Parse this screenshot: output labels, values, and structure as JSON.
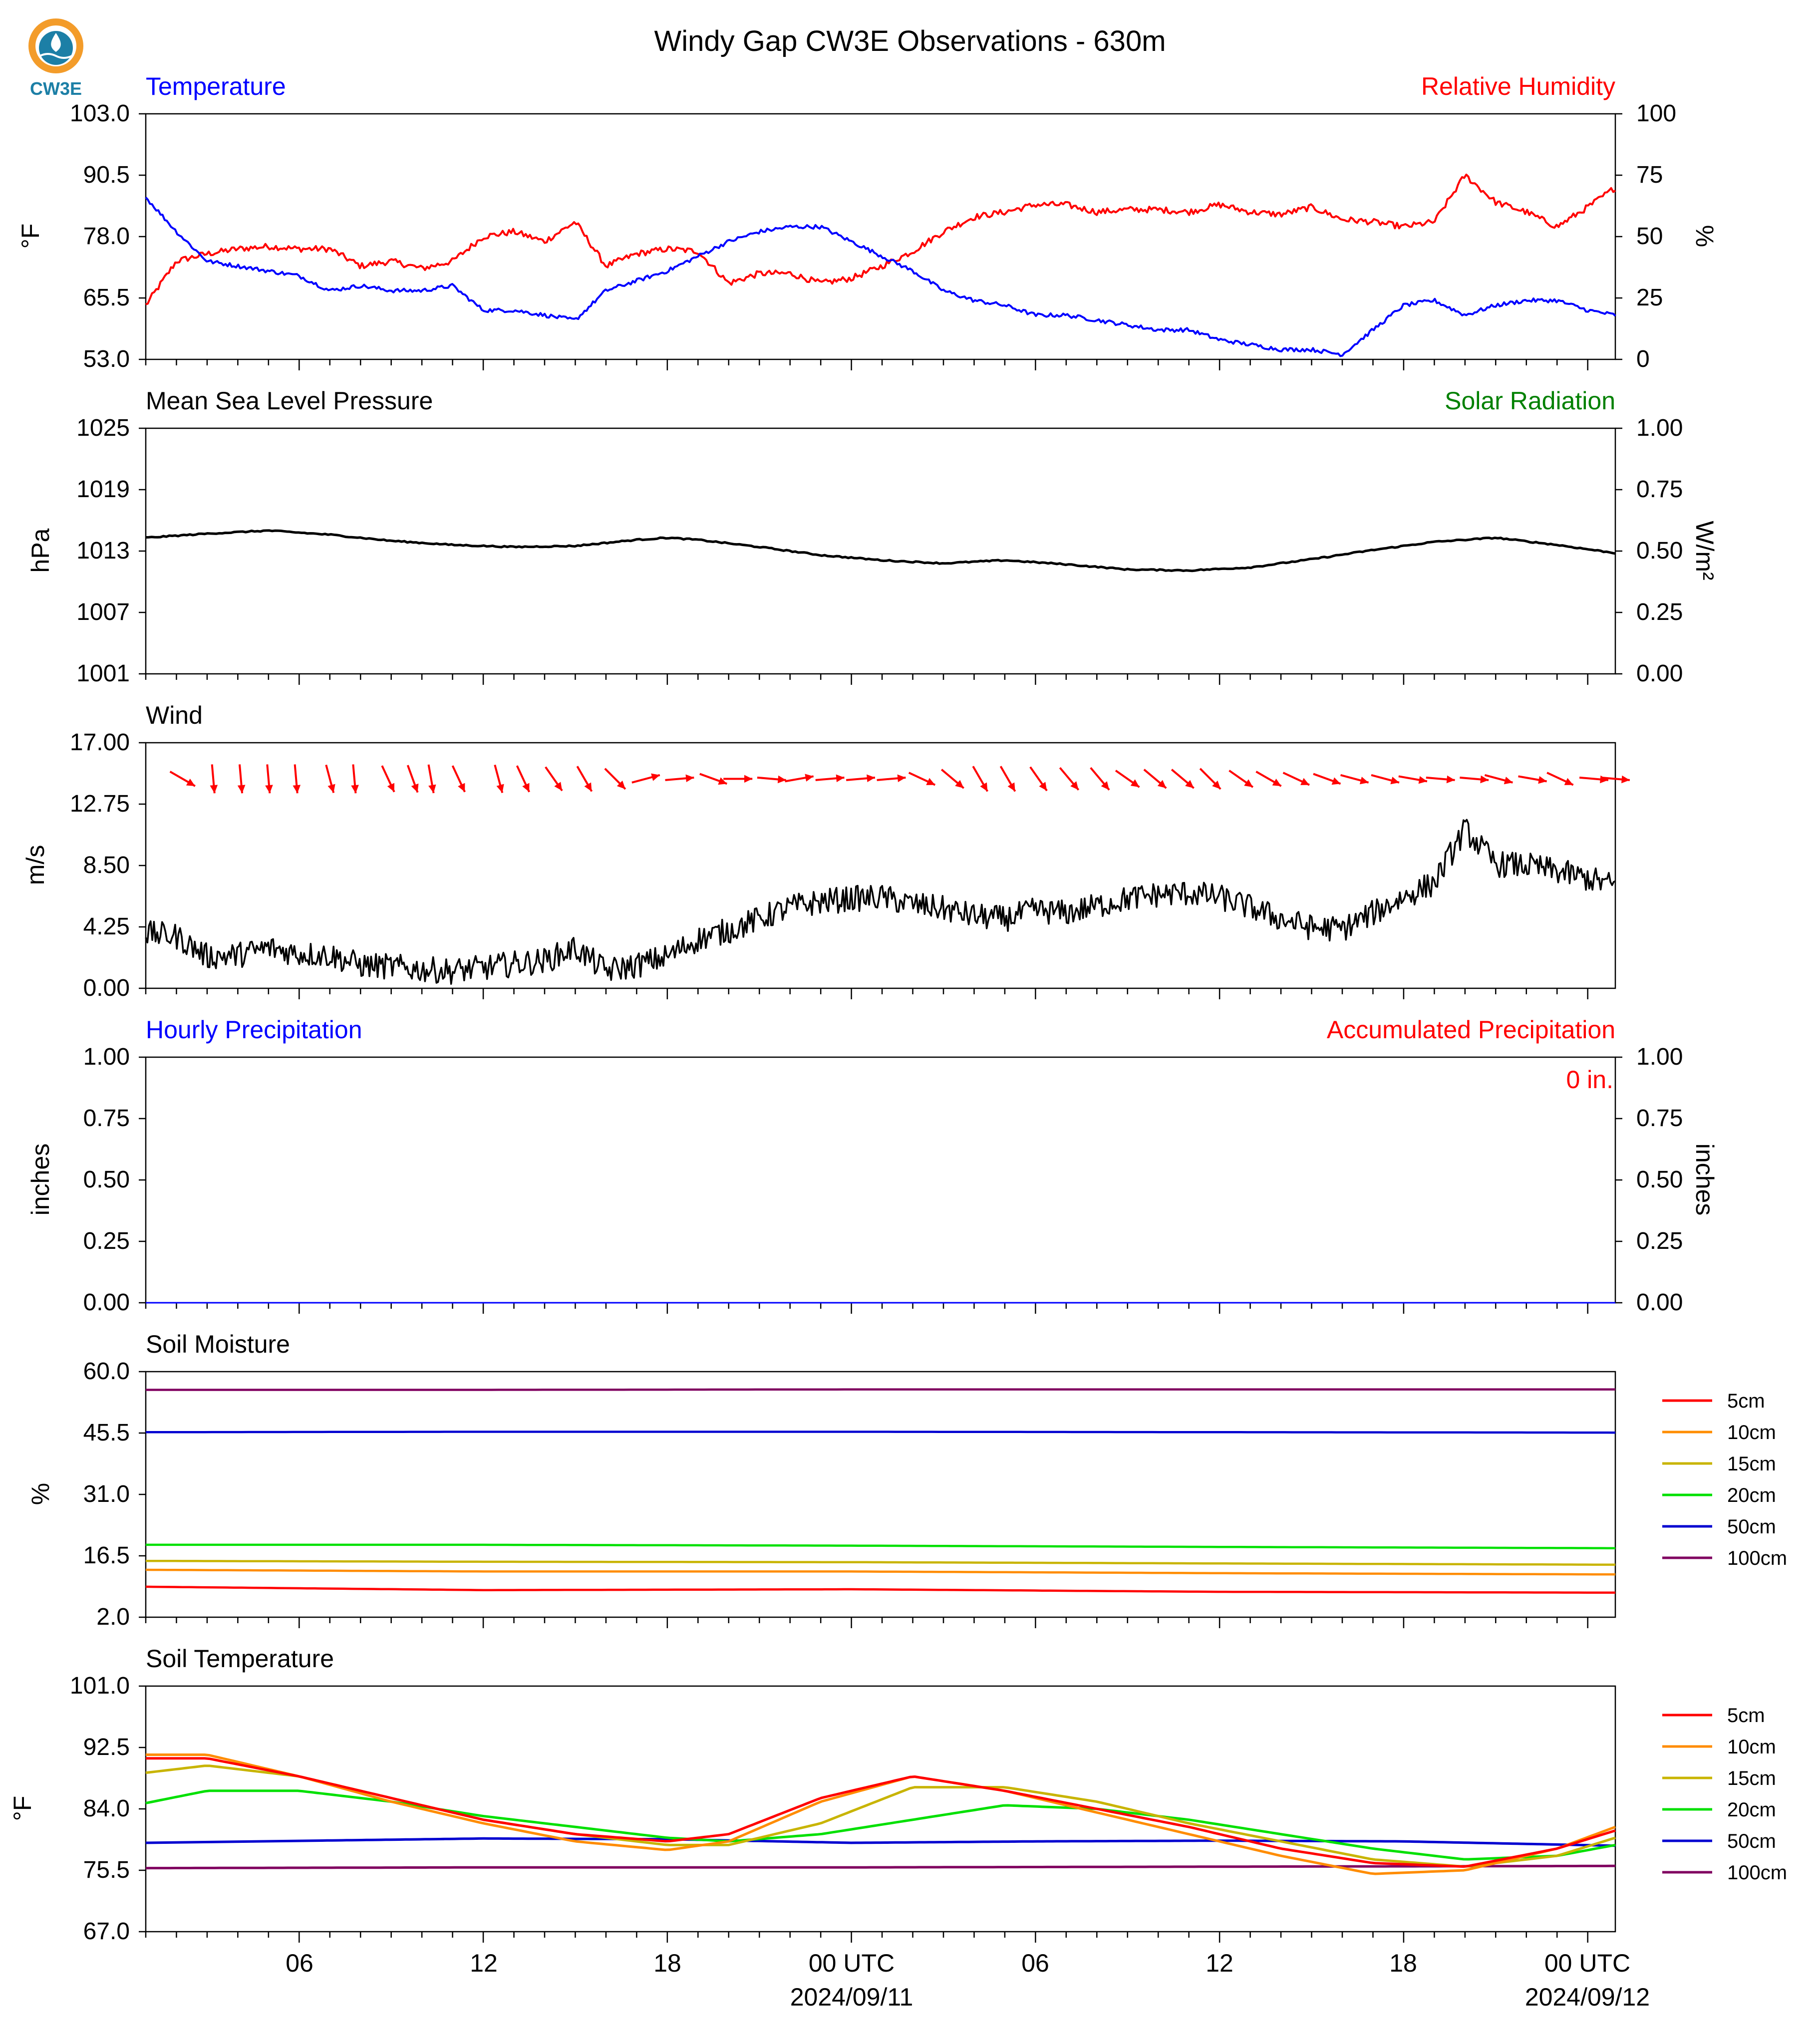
{
  "page_title": "Windy Gap CW3E Observations - 630m",
  "logo_text": "CW3E",
  "colors": {
    "temperature": "#0000ff",
    "humidity": "#ff0000",
    "pressure": "#000000",
    "solar": "#008000",
    "wind": "#000000",
    "wind_arrow": "#ff0000",
    "hourly_precip": "#0000ff",
    "accum_precip": "#ff0000",
    "soil_5cm": "#ff0000",
    "soil_10cm": "#ff8c00",
    "soil_15cm": "#c8b400",
    "soil_20cm": "#00e000",
    "soil_50cm": "#0000d0",
    "soil_100cm": "#800060"
  },
  "x_axis": {
    "tick_labels": [
      "06",
      "12",
      "18",
      "00 UTC",
      "06",
      "12",
      "18",
      "00 UTC"
    ],
    "tick_hours": [
      6,
      12,
      18,
      24,
      30,
      36,
      42,
      48
    ],
    "date_labels": [
      {
        "hour": 24,
        "text": "2024/09/11"
      },
      {
        "hour": 48,
        "text": "2024/09/12"
      }
    ],
    "range_hours": [
      1,
      48.9
    ]
  },
  "panels": {
    "temp_rh": {
      "left_title": "Temperature",
      "right_title": "Relative Humidity",
      "left_unit": "°F",
      "right_unit": "%",
      "left_ticks": [
        "103.0",
        "90.5",
        "78.0",
        "65.5",
        "53.0"
      ],
      "right_ticks": [
        "100",
        "75",
        "50",
        "25",
        "0"
      ]
    },
    "pressure": {
      "left_title": "Mean Sea Level Pressure",
      "right_title": "Solar Radiation",
      "left_unit": "hPa",
      "right_unit": "W/m²",
      "left_ticks": [
        "1025",
        "1019",
        "1013",
        "1007",
        "1001"
      ],
      "right_ticks": [
        "1.00",
        "0.75",
        "0.50",
        "0.25",
        "0.00"
      ]
    },
    "wind": {
      "left_title": "Wind",
      "left_unit": "m/s",
      "left_ticks": [
        "17.00",
        "12.75",
        "8.50",
        "4.25",
        "0.00"
      ]
    },
    "precip": {
      "left_title": "Hourly Precipitation",
      "right_title": "Accumulated Precipitation",
      "left_unit": "inches",
      "right_unit": "inches",
      "left_ticks": [
        "1.00",
        "0.75",
        "0.50",
        "0.25",
        "0.00"
      ],
      "right_ticks": [
        "1.00",
        "0.75",
        "0.50",
        "0.25",
        "0.00"
      ],
      "accum_label": "0 in."
    },
    "soil_moisture": {
      "left_title": "Soil Moisture",
      "left_unit": "%",
      "left_ticks": [
        "60.0",
        "45.5",
        "31.0",
        "16.5",
        "2.0"
      ],
      "legend": [
        "5cm",
        "10cm",
        "15cm",
        "20cm",
        "50cm",
        "100cm"
      ]
    },
    "soil_temp": {
      "left_title": "Soil Temperature",
      "left_unit": "°F",
      "left_ticks": [
        "101.0",
        "92.5",
        "84.0",
        "75.5",
        "67.0"
      ],
      "legend": [
        "5cm",
        "10cm",
        "15cm",
        "20cm",
        "50cm",
        "100cm"
      ]
    }
  },
  "chart_data": [
    {
      "type": "line",
      "title": "Temperature",
      "ylabel": "°F",
      "ylim": [
        53,
        103
      ],
      "series": [
        {
          "name": "Temperature",
          "x": [
            1,
            2,
            3,
            4,
            5,
            6,
            7,
            8,
            9,
            10,
            11,
            12,
            13,
            14,
            15,
            16,
            17,
            18,
            19,
            20,
            21,
            22,
            23,
            24,
            25,
            26,
            27,
            28,
            29,
            30,
            31,
            32,
            33,
            34,
            35,
            36,
            37,
            38,
            39,
            40,
            41,
            42,
            43,
            44,
            45,
            46,
            47,
            48,
            48.9
          ],
          "y": [
            86,
            79,
            73,
            72,
            71,
            70,
            67,
            68,
            67,
            67,
            68,
            63,
            63,
            62,
            61,
            67,
            69,
            71,
            74,
            77,
            79,
            80,
            80,
            77,
            74,
            71,
            67,
            65,
            64,
            62,
            62,
            61,
            60,
            59,
            59,
            57,
            56,
            55,
            55,
            54,
            59,
            64,
            65,
            62,
            64,
            65,
            65,
            63,
            62
          ]
        }
      ]
    },
    {
      "type": "line",
      "title": "Relative Humidity",
      "ylabel": "%",
      "ylim": [
        0,
        100
      ],
      "series": [
        {
          "name": "Relative Humidity",
          "x": [
            1,
            2,
            3,
            4,
            5,
            6,
            7,
            8,
            9,
            10,
            11,
            12,
            13,
            14,
            15,
            16,
            17,
            18,
            19,
            20,
            21,
            22,
            23,
            24,
            25,
            26,
            27,
            28,
            29,
            30,
            31,
            32,
            33,
            34,
            35,
            36,
            37,
            38,
            39,
            40,
            41,
            42,
            43,
            44,
            45,
            46,
            47,
            48,
            48.9
          ],
          "y": [
            22,
            40,
            43,
            45,
            46,
            45,
            45,
            38,
            40,
            37,
            40,
            50,
            52,
            48,
            56,
            38,
            43,
            45,
            44,
            31,
            35,
            35,
            31,
            33,
            38,
            44,
            52,
            58,
            60,
            63,
            63,
            60,
            61,
            61,
            60,
            63,
            60,
            59,
            62,
            57,
            56,
            54,
            56,
            75,
            64,
            60,
            54,
            62,
            70
          ]
        }
      ]
    },
    {
      "type": "line",
      "title": "Mean Sea Level Pressure",
      "ylabel": "hPa",
      "ylim": [
        1001,
        1025
      ],
      "series": [
        {
          "name": "Mean Sea Level Pressure",
          "x": [
            1,
            3,
            5,
            7,
            9,
            11,
            13,
            15,
            17,
            18,
            19,
            21,
            23,
            25,
            27,
            29,
            31,
            33,
            35,
            37,
            39,
            41,
            43,
            45,
            47,
            48.9
          ],
          "y": [
            1014.3,
            1014.7,
            1015,
            1014.6,
            1014,
            1013.6,
            1013.4,
            1013.5,
            1014.1,
            1014.3,
            1014.1,
            1013.4,
            1012.6,
            1012.1,
            1011.8,
            1012.1,
            1011.7,
            1011.2,
            1011.1,
            1011.4,
            1012.2,
            1013.1,
            1013.9,
            1014.3,
            1013.6,
            1012.8
          ]
        }
      ]
    },
    {
      "type": "line",
      "title": "Wind",
      "ylabel": "m/s",
      "ylim": [
        0,
        17
      ],
      "series": [
        {
          "name": "Wind speed",
          "x": [
            1,
            2,
            3,
            4,
            5,
            6,
            7,
            8,
            9,
            10,
            11,
            12,
            13,
            14,
            15,
            16,
            17,
            18,
            19,
            20,
            21,
            22,
            23,
            24,
            25,
            26,
            27,
            28,
            29,
            30,
            31,
            32,
            33,
            34,
            35,
            36,
            37,
            38,
            39,
            40,
            41,
            42,
            43,
            44,
            45,
            46,
            47,
            48,
            48.9
          ],
          "y": [
            3.8,
            3.6,
            2.2,
            2.3,
            2.8,
            2.4,
            2.3,
            1.6,
            1.5,
            1.3,
            1.2,
            1.4,
            1.7,
            1.9,
            2.8,
            1.2,
            1.6,
            2.2,
            3.4,
            4,
            4.8,
            5.6,
            6,
            6.2,
            6.3,
            5.8,
            5.5,
            5,
            4.8,
            5.4,
            5.2,
            5.7,
            6.2,
            6.5,
            6.6,
            6.3,
            5.6,
            4.8,
            4.2,
            4.1,
            5.2,
            6.3,
            7.3,
            11,
            8.6,
            8.5,
            8.1,
            7.6,
            7.1
          ]
        },
        {
          "name": "Wind direction",
          "x": [
            2.2,
            3.2,
            4.1,
            5,
            5.9,
            7,
            7.8,
            8.9,
            9.7,
            10.3,
            11.2,
            12.5,
            13.3,
            14.3,
            15.3,
            16.3,
            17.3,
            18.4,
            19.5,
            20.3,
            21.4,
            22.3,
            23.3,
            24.3,
            25.3,
            26.3,
            27.3,
            28.2,
            29.1,
            30.1,
            31.1,
            32.1,
            33,
            33.9,
            34.8,
            35.7,
            36.7,
            37.6,
            38.5,
            39.5,
            40.4,
            41.4,
            42.3,
            43.2,
            44.3,
            45.1,
            46.2,
            47.1,
            48.2,
            48.9
          ],
          "y": [
            300,
            355,
            355,
            355,
            355,
            345,
            355,
            335,
            340,
            350,
            335,
            345,
            335,
            325,
            330,
            315,
            255,
            265,
            290,
            270,
            275,
            260,
            265,
            265,
            265,
            295,
            310,
            330,
            330,
            325,
            320,
            320,
            305,
            310,
            310,
            315,
            305,
            300,
            295,
            290,
            285,
            285,
            280,
            275,
            275,
            285,
            280,
            295,
            275,
            275
          ]
        }
      ]
    },
    {
      "type": "line",
      "title": "Hourly Precipitation",
      "ylabel": "inches",
      "ylim": [
        0,
        1
      ],
      "series": [
        {
          "name": "Hourly Precipitation",
          "x": [
            1,
            48.9
          ],
          "y": [
            0,
            0
          ]
        }
      ]
    },
    {
      "type": "line",
      "title": "Soil Moisture",
      "ylabel": "%",
      "ylim": [
        2,
        60
      ],
      "series": [
        {
          "name": "5cm",
          "x": [
            1,
            12,
            24,
            36,
            48.9
          ],
          "y": [
            9.2,
            8.4,
            8.6,
            8.0,
            7.8
          ]
        },
        {
          "name": "10cm",
          "x": [
            1,
            12,
            24,
            36,
            48.9
          ],
          "y": [
            13.2,
            12.8,
            12.8,
            12.4,
            12.1
          ]
        },
        {
          "name": "15cm",
          "x": [
            1,
            12,
            24,
            36,
            48.9
          ],
          "y": [
            15.3,
            15.1,
            15.0,
            14.7,
            14.4
          ]
        },
        {
          "name": "20cm",
          "x": [
            1,
            12,
            24,
            36,
            48.9
          ],
          "y": [
            19.1,
            19.1,
            18.9,
            18.6,
            18.3
          ]
        },
        {
          "name": "50cm",
          "x": [
            1,
            12,
            24,
            36,
            48.9
          ],
          "y": [
            45.7,
            45.8,
            45.8,
            45.7,
            45.6
          ]
        },
        {
          "name": "100cm",
          "x": [
            1,
            12,
            24,
            36,
            48.9
          ],
          "y": [
            55.7,
            55.7,
            55.8,
            55.8,
            55.8
          ]
        }
      ]
    },
    {
      "type": "line",
      "title": "Soil Temperature",
      "ylabel": "°F",
      "ylim": [
        67,
        101
      ],
      "series": [
        {
          "name": "5cm",
          "x": [
            1,
            3,
            6,
            9,
            12,
            15,
            18,
            20,
            23,
            26,
            29,
            32,
            35,
            38,
            41,
            44,
            47,
            48.9
          ],
          "y": [
            91,
            91,
            88.5,
            85.5,
            82.5,
            80.5,
            79.5,
            80.5,
            85.5,
            88.5,
            86.5,
            84,
            81.5,
            78.5,
            76.5,
            76,
            78.5,
            81
          ]
        },
        {
          "name": "10cm",
          "x": [
            1,
            3,
            6,
            9,
            12,
            15,
            18,
            20,
            23,
            26,
            29,
            32,
            35,
            38,
            41,
            44,
            47,
            48.9
          ],
          "y": [
            91.5,
            91.5,
            88.5,
            85,
            82,
            79.5,
            78.3,
            79.5,
            85,
            88.5,
            86.5,
            83.5,
            80.5,
            77.5,
            75,
            75.5,
            78.5,
            81.5
          ]
        },
        {
          "name": "15cm",
          "x": [
            1,
            3,
            6,
            9,
            12,
            15,
            18,
            20,
            23,
            26,
            29,
            32,
            35,
            38,
            41,
            44,
            47,
            48.9
          ],
          "y": [
            89,
            90,
            88.5,
            85.5,
            82.5,
            80.5,
            79,
            79,
            82,
            87,
            87,
            85,
            82,
            79.5,
            77,
            76,
            77.5,
            80
          ]
        },
        {
          "name": "20cm",
          "x": [
            1,
            3,
            6,
            9,
            12,
            15,
            18,
            20,
            23,
            26,
            29,
            32,
            35,
            38,
            41,
            44,
            47,
            48.9
          ],
          "y": [
            84.8,
            86.5,
            86.5,
            85,
            83,
            81.5,
            80,
            79.5,
            80.5,
            82.5,
            84.5,
            84,
            82.5,
            80.5,
            78.5,
            77,
            77.5,
            79
          ]
        },
        {
          "name": "50cm",
          "x": [
            1,
            12,
            18,
            24,
            30,
            36,
            42,
            48.9
          ],
          "y": [
            79.3,
            79.9,
            79.8,
            79.3,
            79.5,
            79.6,
            79.5,
            78.9
          ]
        },
        {
          "name": "100cm",
          "x": [
            1,
            12,
            24,
            36,
            48.9
          ],
          "y": [
            75.8,
            75.9,
            75.9,
            76.0,
            76.1
          ]
        }
      ]
    }
  ]
}
